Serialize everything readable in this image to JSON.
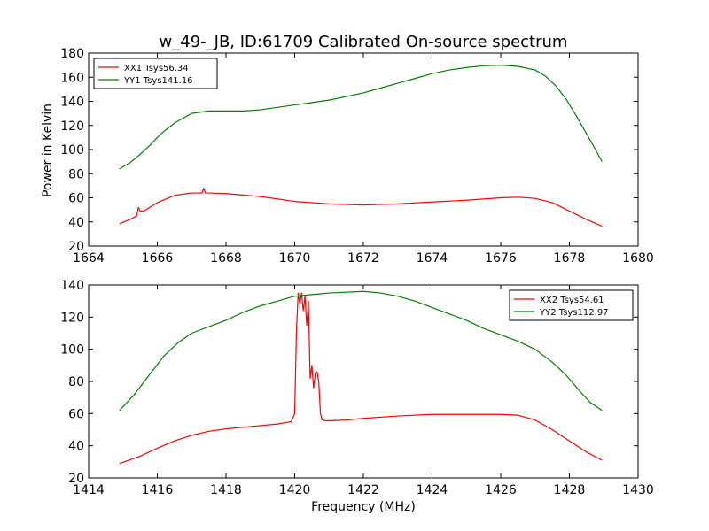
{
  "chart_data": [
    {
      "type": "line",
      "title": "w_49-_JB, ID:61709 Calibrated On-source spectrum",
      "xlabel": "",
      "ylabel": "Power in Kelvin",
      "xlim": [
        1664,
        1680
      ],
      "ylim": [
        20,
        180
      ],
      "xticks": [
        1664,
        1666,
        1668,
        1670,
        1672,
        1674,
        1676,
        1678,
        1680
      ],
      "yticks": [
        20,
        40,
        60,
        80,
        100,
        120,
        140,
        160,
        180
      ],
      "legend": "top-left",
      "grid": false,
      "series": [
        {
          "name": "XX1 Tsys56.34",
          "color": "#ff0000",
          "x": [
            1664.9,
            1665.2,
            1665.4,
            1665.45,
            1665.5,
            1665.6,
            1666.0,
            1666.5,
            1667.0,
            1667.3,
            1667.35,
            1667.4,
            1667.5,
            1668.0,
            1669.0,
            1670.0,
            1671.0,
            1672.0,
            1673.0,
            1674.0,
            1675.0,
            1676.0,
            1676.5,
            1677.0,
            1677.5,
            1678.0,
            1678.5,
            1678.95
          ],
          "y": [
            38.5,
            42,
            45,
            52,
            49,
            49,
            56,
            62,
            64,
            64,
            68,
            64,
            64,
            63.5,
            61,
            57,
            55,
            54,
            55,
            56.5,
            58,
            60,
            60.5,
            59.5,
            56,
            49,
            42,
            36.5
          ]
        },
        {
          "name": "YY1 Tsys141.16",
          "color": "#008000",
          "x": [
            1664.9,
            1665.2,
            1665.5,
            1665.8,
            1666.1,
            1666.5,
            1667.0,
            1667.5,
            1668.0,
            1668.5,
            1669.0,
            1669.5,
            1670.0,
            1670.5,
            1671.0,
            1671.5,
            1672.0,
            1672.5,
            1673.0,
            1673.5,
            1674.0,
            1674.5,
            1675.0,
            1675.5,
            1676.0,
            1676.5,
            1677.0,
            1677.3,
            1677.6,
            1677.9,
            1678.2,
            1678.5,
            1678.7,
            1678.95
          ],
          "y": [
            84,
            89,
            96,
            104,
            113,
            122,
            130,
            132,
            132,
            132,
            133,
            135,
            137,
            139,
            141,
            144,
            147,
            151,
            155,
            159,
            163,
            166,
            168,
            169.5,
            170,
            169,
            166,
            161,
            153,
            142,
            128,
            113,
            103,
            90
          ]
        }
      ]
    },
    {
      "type": "line",
      "title": "",
      "xlabel": "Frequency (MHz)",
      "ylabel": "",
      "xlim": [
        1414,
        1430
      ],
      "ylim": [
        20,
        140
      ],
      "xticks": [
        1414,
        1416,
        1418,
        1420,
        1422,
        1424,
        1426,
        1428,
        1430
      ],
      "yticks": [
        20,
        40,
        60,
        80,
        100,
        120,
        140
      ],
      "legend": "top-right",
      "grid": false,
      "series": [
        {
          "name": "XX2 Tsys54.61",
          "color": "#ff0000",
          "x": [
            1414.9,
            1415.5,
            1416.0,
            1416.5,
            1417.0,
            1417.5,
            1418.0,
            1418.5,
            1419.0,
            1419.5,
            1419.9,
            1420.0,
            1420.05,
            1420.1,
            1420.15,
            1420.2,
            1420.25,
            1420.3,
            1420.35,
            1420.4,
            1420.45,
            1420.5,
            1420.55,
            1420.6,
            1420.65,
            1420.7,
            1420.75,
            1420.8,
            1420.9,
            1421.0,
            1421.5,
            1422.0,
            1423.0,
            1424.0,
            1425.0,
            1426.0,
            1426.5,
            1427.0,
            1427.5,
            1428.0,
            1428.5,
            1428.95
          ],
          "y": [
            29,
            33.5,
            38.5,
            43,
            46.5,
            49,
            50.5,
            51.5,
            52.5,
            53.5,
            55,
            60,
            110,
            135,
            128,
            135,
            124,
            133,
            115,
            130,
            82,
            90,
            76,
            85,
            86,
            80,
            60,
            56,
            55.5,
            55.5,
            56,
            57,
            58.5,
            59.5,
            59.5,
            59.5,
            59,
            56,
            50,
            43,
            36,
            31
          ]
        },
        {
          "name": "YY2 Tsys112.97",
          "color": "#008000",
          "x": [
            1414.9,
            1415.3,
            1415.8,
            1416.2,
            1416.6,
            1417.0,
            1417.5,
            1418.0,
            1418.5,
            1419.0,
            1419.5,
            1420.0,
            1420.5,
            1421.0,
            1421.5,
            1422.0,
            1422.5,
            1423.0,
            1423.5,
            1424.0,
            1424.5,
            1425.0,
            1425.5,
            1426.0,
            1426.5,
            1427.0,
            1427.5,
            1427.9,
            1428.3,
            1428.6,
            1428.95
          ],
          "y": [
            62,
            71,
            85,
            96,
            104,
            110,
            114,
            118,
            123,
            127,
            130,
            133,
            134,
            135,
            135.5,
            136,
            135,
            133,
            130,
            126,
            122,
            118,
            113,
            109,
            105,
            100,
            92,
            84,
            74,
            67,
            62
          ]
        }
      ]
    }
  ]
}
